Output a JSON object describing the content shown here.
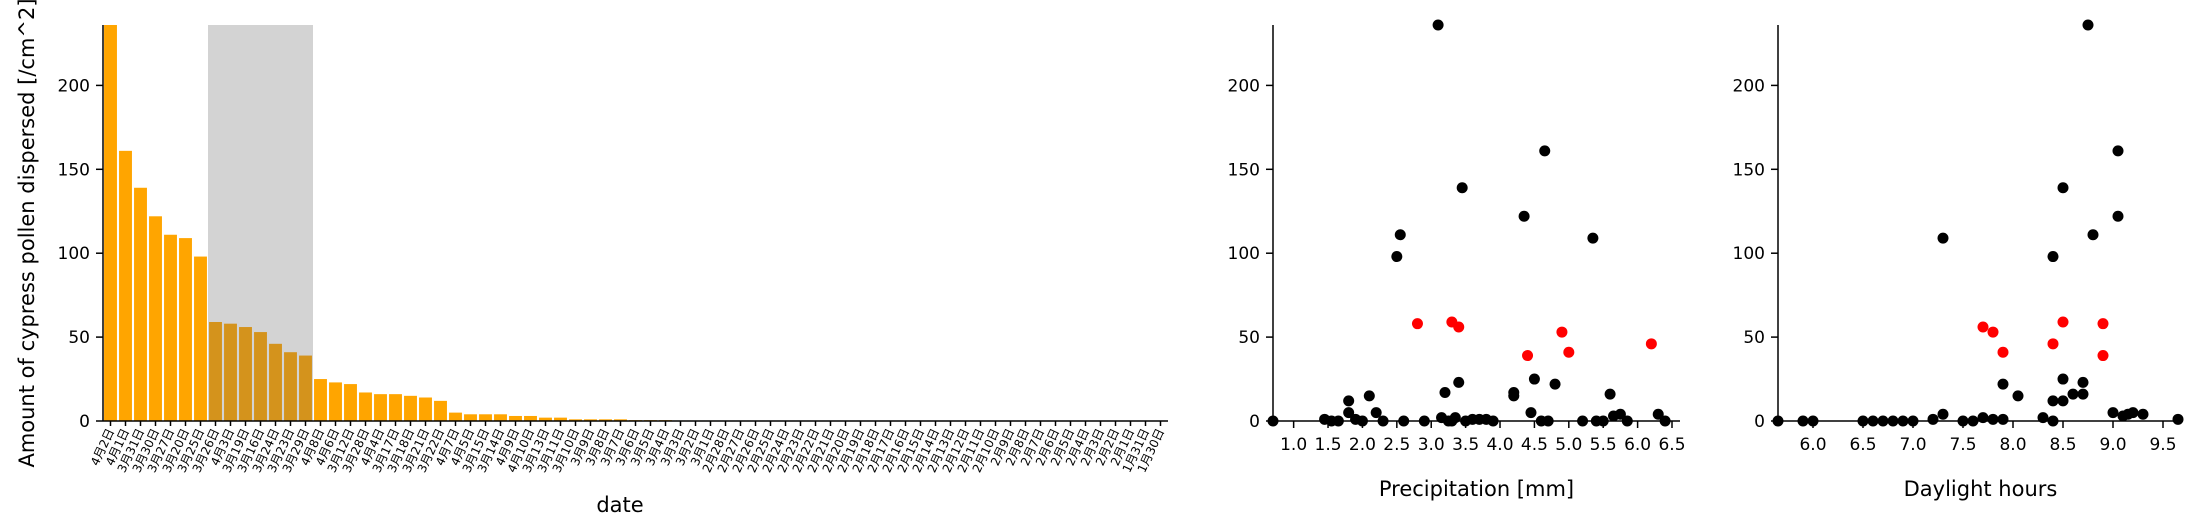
{
  "chart_data": [
    {
      "type": "bar",
      "xlabel": "date",
      "ylabel": "Amount of cypress pollen dispersed [/cm^2]",
      "ylim": [
        0,
        236
      ],
      "yticks": [
        0,
        50,
        100,
        150,
        200
      ],
      "colors": {
        "bar": "#ffa500",
        "bar_highlighted": "#d4931c",
        "highlight_band": "#d3d3d3"
      },
      "highlighted_range": [
        7,
        13
      ],
      "categories": [
        "4月2日",
        "4月1日",
        "3月31日",
        "3月30日",
        "3月27日",
        "3月20日",
        "3月25日",
        "3月26日",
        "4月3日",
        "3月19日",
        "3月16日",
        "3月24日",
        "3月23日",
        "3月29日",
        "4月8日",
        "4月6日",
        "3月12日",
        "3月28日",
        "4月4日",
        "3月17日",
        "3月18日",
        "3月21日",
        "3月22日",
        "4月7日",
        "4月5日",
        "3月15日",
        "3月14日",
        "4月9日",
        "4月10日",
        "3月13日",
        "3月11日",
        "3月10日",
        "3月9日",
        "3月8日",
        "3月7日",
        "3月6日",
        "3月5日",
        "3月4日",
        "3月3日",
        "3月2日",
        "3月1日",
        "2月28日",
        "2月27日",
        "2月26日",
        "2月25日",
        "2月24日",
        "2月23日",
        "2月22日",
        "2月21日",
        "2月20日",
        "2月19日",
        "2月18日",
        "2月17日",
        "2月16日",
        "2月15日",
        "2月14日",
        "2月13日",
        "2月12日",
        "2月11日",
        "2月10日",
        "2月9日",
        "2月8日",
        "2月7日",
        "2月6日",
        "2月5日",
        "2月4日",
        "2月3日",
        "2月2日",
        "2月1日",
        "1月31日",
        "1月30日"
      ],
      "values": [
        236,
        161,
        139,
        122,
        111,
        109,
        98,
        59,
        58,
        56,
        53,
        46,
        41,
        39,
        25,
        23,
        22,
        17,
        16,
        16,
        15,
        14,
        12,
        5,
        4,
        4,
        4,
        3,
        3,
        2,
        2,
        1,
        1,
        1,
        1,
        0.5,
        0.5,
        0.5,
        0.3,
        0.3,
        0.3,
        0.2,
        0.2,
        0.2,
        0.1,
        0.1,
        0.1,
        0.1,
        0,
        0,
        0,
        0,
        0,
        0,
        0,
        0,
        0,
        0,
        0,
        0,
        0,
        0,
        0,
        0,
        0,
        0,
        0,
        0,
        0,
        0,
        0
      ]
    },
    {
      "type": "scatter",
      "xlabel": "Precipitation [mm]",
      "ylabel": "",
      "xlim": [
        0.7,
        6.5
      ],
      "ylim": [
        0,
        236
      ],
      "xticks": [
        1.0,
        1.5,
        2.0,
        2.5,
        3.0,
        3.5,
        4.0,
        4.5,
        5.0,
        5.5,
        6.0,
        6.5
      ],
      "yticks": [
        0,
        50,
        100,
        150,
        200
      ],
      "colors": {
        "normal": "#000000",
        "highlighted": "#ff0000"
      },
      "series": [
        {
          "color_key": "normal",
          "points": [
            [
              0.7,
              0
            ],
            [
              1.45,
              1
            ],
            [
              1.55,
              0
            ],
            [
              1.65,
              0
            ],
            [
              1.8,
              12
            ],
            [
              1.8,
              5
            ],
            [
              1.9,
              1
            ],
            [
              2.0,
              0
            ],
            [
              2.1,
              15
            ],
            [
              2.2,
              5
            ],
            [
              2.3,
              0
            ],
            [
              2.5,
              98
            ],
            [
              2.55,
              111
            ],
            [
              2.6,
              0
            ],
            [
              2.9,
              0
            ],
            [
              3.1,
              236
            ],
            [
              3.15,
              2
            ],
            [
              3.2,
              17
            ],
            [
              3.25,
              0
            ],
            [
              3.3,
              0
            ],
            [
              3.35,
              2
            ],
            [
              3.4,
              23
            ],
            [
              3.45,
              139
            ],
            [
              3.5,
              0
            ],
            [
              3.6,
              1
            ],
            [
              3.7,
              1
            ],
            [
              3.8,
              1
            ],
            [
              3.9,
              0
            ],
            [
              4.2,
              15
            ],
            [
              4.2,
              17
            ],
            [
              4.35,
              122
            ],
            [
              4.45,
              5
            ],
            [
              4.5,
              25
            ],
            [
              4.6,
              0
            ],
            [
              4.7,
              0
            ],
            [
              4.65,
              161
            ],
            [
              4.8,
              22
            ],
            [
              5.2,
              0
            ],
            [
              5.35,
              109
            ],
            [
              5.4,
              0
            ],
            [
              5.5,
              0
            ],
            [
              5.6,
              16
            ],
            [
              5.65,
              3
            ],
            [
              5.75,
              4
            ],
            [
              5.85,
              0
            ],
            [
              6.3,
              4
            ],
            [
              6.4,
              0
            ]
          ]
        },
        {
          "color_key": "highlighted",
          "points": [
            [
              2.8,
              58
            ],
            [
              3.3,
              59
            ],
            [
              3.4,
              56
            ],
            [
              4.4,
              39
            ],
            [
              4.9,
              53
            ],
            [
              5.0,
              41
            ],
            [
              6.2,
              46
            ]
          ]
        }
      ]
    },
    {
      "type": "scatter",
      "xlabel": "Daylight hours",
      "ylabel": "",
      "xlim": [
        5.65,
        9.65
      ],
      "ylim": [
        0,
        236
      ],
      "xticks": [
        6.0,
        6.5,
        7.0,
        7.5,
        8.0,
        8.5,
        9.0,
        9.5
      ],
      "yticks": [
        0,
        50,
        100,
        150,
        200
      ],
      "colors": {
        "normal": "#000000",
        "highlighted": "#ff0000"
      },
      "series": [
        {
          "color_key": "normal",
          "points": [
            [
              5.65,
              0
            ],
            [
              5.9,
              0
            ],
            [
              6.0,
              0
            ],
            [
              6.5,
              0
            ],
            [
              6.6,
              0
            ],
            [
              6.7,
              0
            ],
            [
              6.8,
              0
            ],
            [
              6.9,
              0
            ],
            [
              7.0,
              0
            ],
            [
              7.2,
              1
            ],
            [
              7.3,
              4
            ],
            [
              7.3,
              109
            ],
            [
              7.5,
              0
            ],
            [
              7.6,
              0
            ],
            [
              7.7,
              2
            ],
            [
              7.8,
              1
            ],
            [
              7.9,
              22
            ],
            [
              7.9,
              1
            ],
            [
              8.05,
              15
            ],
            [
              8.3,
              2
            ],
            [
              8.4,
              0
            ],
            [
              8.4,
              98
            ],
            [
              8.4,
              12
            ],
            [
              8.5,
              139
            ],
            [
              8.5,
              25
            ],
            [
              8.5,
              12
            ],
            [
              8.6,
              16
            ],
            [
              8.7,
              16
            ],
            [
              8.7,
              23
            ],
            [
              8.75,
              236
            ],
            [
              8.8,
              111
            ],
            [
              9.0,
              5
            ],
            [
              9.05,
              161
            ],
            [
              9.05,
              122
            ],
            [
              9.1,
              3
            ],
            [
              9.15,
              4
            ],
            [
              9.2,
              5
            ],
            [
              9.3,
              4
            ],
            [
              9.65,
              1
            ]
          ]
        },
        {
          "color_key": "highlighted",
          "points": [
            [
              7.7,
              56
            ],
            [
              7.8,
              53
            ],
            [
              7.9,
              41
            ],
            [
              8.4,
              46
            ],
            [
              8.5,
              59
            ],
            [
              8.9,
              58
            ],
            [
              8.9,
              39
            ]
          ]
        }
      ]
    }
  ]
}
